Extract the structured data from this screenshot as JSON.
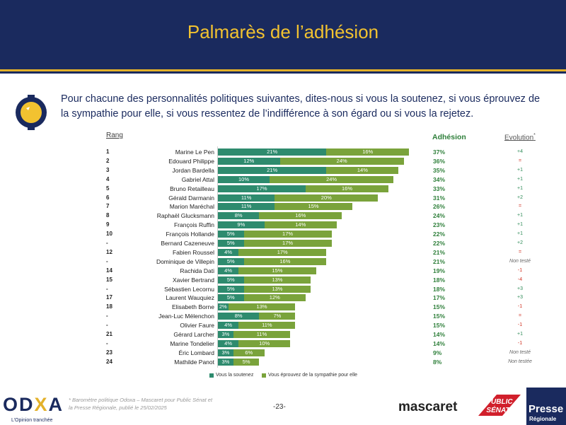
{
  "header": {
    "title": "Palmarès de l’adhésion"
  },
  "question": "Pour chacune des personnalités politiques suivantes, dites-nous si vous la soutenez, si vous éprouvez de la sympathie pour elle, si vous ressentez de l’indifférence à son égard ou si vous la rejetez.",
  "columns": {
    "rank": "Rang",
    "adhesion": "Adhésion",
    "evolution": "Evolution",
    "evolution_mark": "*"
  },
  "colors": {
    "navy": "#1a2a5e",
    "gold": "#e3b12a",
    "soutenez": "#2e8b6e",
    "sympathie": "#7aa33b"
  },
  "chart_data": {
    "type": "bar",
    "stacked": true,
    "orientation": "horizontal",
    "xmax": 40,
    "categories": [
      "Marine Le Pen",
      "Edouard Philippe",
      "Jordan Bardella",
      "Gabriel Attal",
      "Bruno Retailleau",
      "Gérald Darmanin",
      "Marion Maréchal",
      "Raphaël Glucksmann",
      "François Ruffin",
      "François Hollande",
      "Bernard Cazeneuve",
      "Fabien Roussel",
      "Dominique de Villepin",
      "Rachida Dati",
      "Xavier Bertrand",
      "Sébastien Lecornu",
      "Laurent Wauquiez",
      "Elisabeth Borne",
      "Jean-Luc Mélenchon",
      "Olivier Faure",
      "Gérard Larcher",
      "Marine Tondelier",
      "Éric Lombard",
      "Mathilde Panot"
    ],
    "ranks": [
      "1",
      "2",
      "3",
      "4",
      "5",
      "6",
      "7",
      "8",
      "9",
      "10",
      "-",
      "12",
      "-",
      "14",
      "15",
      "-",
      "17",
      "18",
      "-",
      "-",
      "21",
      "-",
      "23",
      "24"
    ],
    "series": [
      {
        "name": "Vous la soutenez",
        "values": [
          21,
          12,
          21,
          10,
          17,
          11,
          11,
          8,
          9,
          5,
          5,
          4,
          5,
          4,
          5,
          5,
          5,
          2,
          8,
          4,
          3,
          4,
          3,
          3
        ]
      },
      {
        "name": "Vous éprouvez de la sympathie pour elle",
        "values": [
          16,
          24,
          14,
          24,
          16,
          20,
          15,
          16,
          14,
          17,
          17,
          17,
          16,
          15,
          13,
          13,
          12,
          13,
          7,
          11,
          11,
          10,
          6,
          5
        ]
      }
    ],
    "adhesion": [
      "37%",
      "36%",
      "35%",
      "34%",
      "33%",
      "31%",
      "26%",
      "24%",
      "23%",
      "22%",
      "22%",
      "21%",
      "21%",
      "19%",
      "18%",
      "18%",
      "17%",
      "15%",
      "15%",
      "15%",
      "14%",
      "14%",
      "9%",
      "8%"
    ],
    "evolution": [
      "+4",
      "=",
      "+1",
      "+1",
      "+1",
      "+2",
      "=",
      "+1",
      "+1",
      "+1",
      "+2",
      "=",
      "Non testé",
      "-1",
      "-4",
      "+3",
      "+3",
      "-1",
      "=",
      "-1",
      "+1",
      "-1",
      "Non testé",
      "Non testée"
    ]
  },
  "footer": {
    "brand": "OD",
    "brand_x": "X",
    "brand_end": "A",
    "tagline": "L’Opinion tranchée",
    "note": "* Baromètre politique Odoxa – Mascaret pour Public Sénat et la Presse Régionale, publié le 25/02/2025",
    "page": "-23-",
    "mascaret": "mascaret",
    "public_senat_1": "PUBLIC",
    "public_senat_2": "SÉNAT",
    "presse_1": "Presse",
    "presse_2": "Régionale"
  }
}
